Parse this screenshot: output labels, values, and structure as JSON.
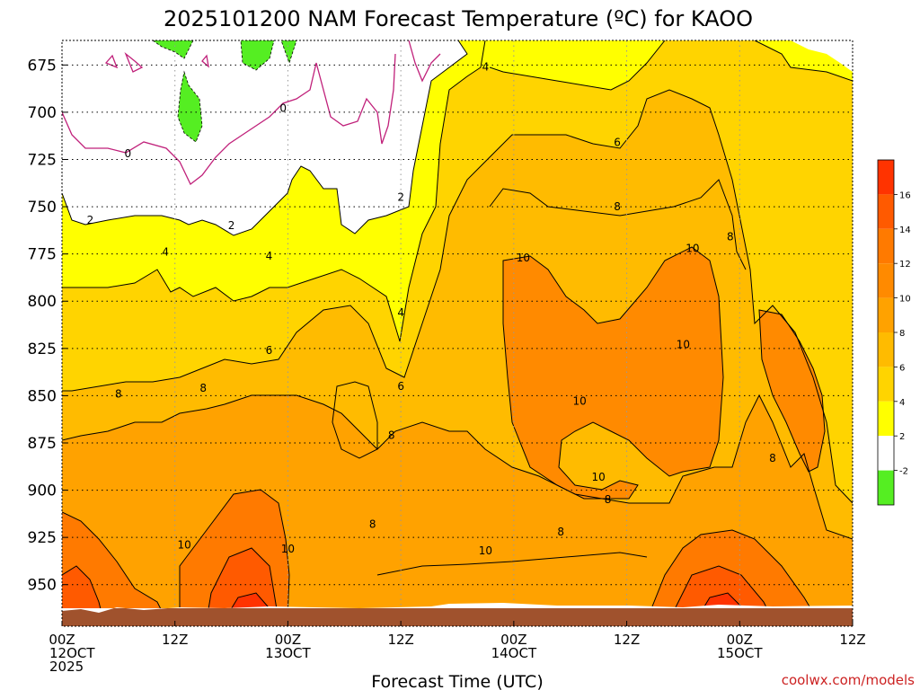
{
  "chart_data": {
    "type": "filled-contour",
    "title": "2025101200 NAM Forecast Temperature (ºC) for KAOO",
    "xlabel": "Forecast Time (UTC)",
    "y_ticks": [
      "675",
      "700",
      "725",
      "750",
      "775",
      "800",
      "825",
      "850",
      "875",
      "900",
      "925",
      "950"
    ],
    "y_values": [
      675,
      700,
      725,
      750,
      775,
      800,
      825,
      850,
      875,
      900,
      925,
      950
    ],
    "ylim": [
      662,
      972
    ],
    "xlim": [
      0,
      84
    ],
    "x_ticks": [
      {
        "h": 0,
        "lines": [
          "00Z",
          "12OCT",
          "2025"
        ]
      },
      {
        "h": 12,
        "lines": [
          "12Z"
        ]
      },
      {
        "h": 24,
        "lines": [
          "00Z",
          "13OCT"
        ]
      },
      {
        "h": 36,
        "lines": [
          "12Z"
        ]
      },
      {
        "h": 48,
        "lines": [
          "00Z",
          "14OCT"
        ]
      },
      {
        "h": 60,
        "lines": [
          "12Z"
        ]
      },
      {
        "h": 72,
        "lines": [
          "00Z",
          "15OCT"
        ]
      },
      {
        "h": 84,
        "lines": [
          "12Z"
        ]
      }
    ],
    "colorbar": {
      "labels": [
        "16",
        "14",
        "12",
        "10",
        "8",
        "6",
        "4",
        "2",
        "-2"
      ],
      "colors": [
        "#ff3300",
        "#ff5a00",
        "#ff7a00",
        "#ff8a00",
        "#ffa200",
        "#ffbb00",
        "#ffd400",
        "#ffff00",
        "#ffffff",
        "#55ee22"
      ]
    },
    "contour_labels": [
      {
        "t": "0",
        "h": 7,
        "p": 722
      },
      {
        "t": "0",
        "h": 23.5,
        "p": 698
      },
      {
        "t": "2",
        "h": 3,
        "p": 757
      },
      {
        "t": "2",
        "h": 18,
        "p": 760
      },
      {
        "t": "2",
        "h": 36,
        "p": 745
      },
      {
        "t": "4",
        "h": 11,
        "p": 774
      },
      {
        "t": "4",
        "h": 22,
        "p": 776
      },
      {
        "t": "4",
        "h": 36,
        "p": 806
      },
      {
        "t": "4",
        "h": 45,
        "p": 676
      },
      {
        "t": "6",
        "h": 22,
        "p": 826
      },
      {
        "t": "6",
        "h": 36,
        "p": 845
      },
      {
        "t": "6",
        "h": 59,
        "p": 716
      },
      {
        "t": "8",
        "h": 6,
        "p": 849
      },
      {
        "t": "8",
        "h": 15,
        "p": 846
      },
      {
        "t": "8",
        "h": 35,
        "p": 871
      },
      {
        "t": "8",
        "h": 33,
        "p": 918
      },
      {
        "t": "8",
        "h": 59,
        "p": 750
      },
      {
        "t": "8",
        "h": 53,
        "p": 922
      },
      {
        "t": "8",
        "h": 58,
        "p": 905
      },
      {
        "t": "8",
        "h": 71,
        "p": 766
      },
      {
        "t": "8",
        "h": 75.5,
        "p": 883
      },
      {
        "t": "10",
        "h": 13,
        "p": 929
      },
      {
        "t": "10",
        "h": 24,
        "p": 931
      },
      {
        "t": "10",
        "h": 45,
        "p": 932
      },
      {
        "t": "10",
        "h": 49,
        "p": 777
      },
      {
        "t": "10",
        "h": 55,
        "p": 853
      },
      {
        "t": "10",
        "h": 57,
        "p": 893
      },
      {
        "t": "10",
        "h": 66,
        "p": 823
      },
      {
        "t": "10",
        "h": 67,
        "p": 772
      }
    ],
    "terrain_color": "#a0522d",
    "credit": "coolwx.com/models"
  }
}
